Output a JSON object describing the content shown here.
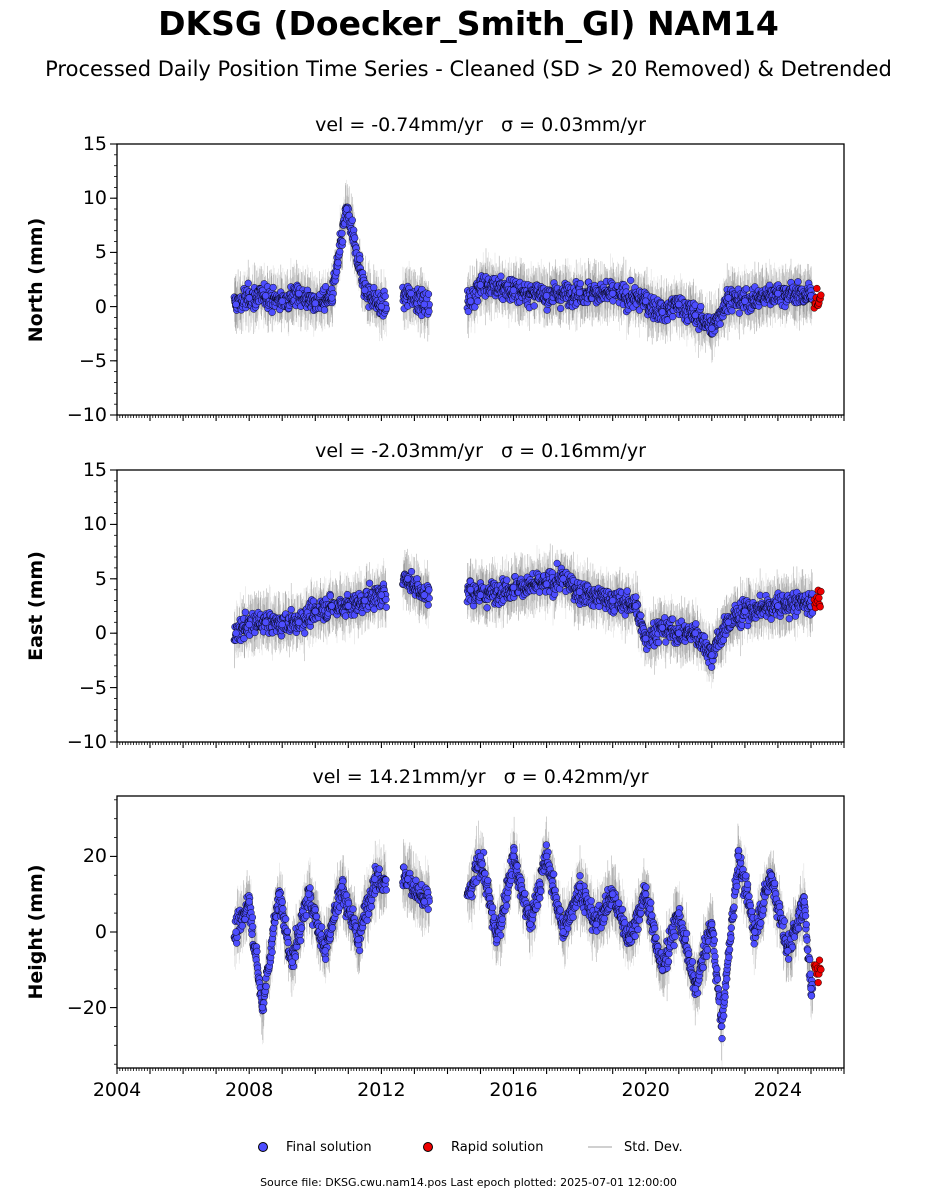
{
  "title": "DKSG (Doecker_Smith_Gl) NAM14",
  "subtitle": "Processed Daily Position Time Series - Cleaned (SD > 20 Removed) & Detrended",
  "footer": "Source file: DKSG.cwu.nam14.pos  Last epoch plotted: 2025-07-01 12:00:00",
  "legend": {
    "final": "Final solution",
    "rapid": "Rapid solution",
    "std": "Std. Dev."
  },
  "colors": {
    "final": "#4d4dff",
    "rapid": "#ee0000",
    "std": "#b0b0b0",
    "marker_edge": "#000000"
  },
  "chart_data": [
    {
      "type": "scatter",
      "title": "vel = -0.74mm/yr   σ = 0.03mm/yr",
      "ylabel": "North (mm)",
      "xlim": [
        2004.0,
        2026.0
      ],
      "ylim": [
        -10,
        15
      ],
      "yticks": [
        -10,
        -5,
        0,
        5,
        10,
        15
      ],
      "ytick_labels": [
        "−10",
        "−5",
        "0",
        "5",
        "10",
        "15"
      ],
      "data_spans": [
        [
          2007.55,
          2012.15
        ],
        [
          2012.65,
          2013.45
        ],
        [
          2014.6,
          2025.05
        ]
      ],
      "rapid_x": [
        2025.1,
        2025.3
      ],
      "series": [
        {
          "name": "Final solution",
          "x": [
            2007.6,
            2008.0,
            2008.5,
            2009.0,
            2009.5,
            2010.0,
            2010.5,
            2010.95,
            2011.5,
            2012.0,
            2012.9,
            2013.3,
            2014.7,
            2015.0,
            2016.0,
            2017.0,
            2018.0,
            2019.0,
            2020.0,
            2020.5,
            2021.0,
            2021.5,
            2022.0,
            2022.5,
            2023.0,
            2024.0,
            2025.0
          ],
          "y": [
            0.2,
            0.8,
            1.0,
            0.5,
            1.2,
            0.3,
            0.8,
            9.0,
            1.5,
            0.0,
            1.2,
            0.2,
            0.5,
            2.0,
            1.5,
            1.0,
            1.3,
            1.2,
            0.5,
            -0.5,
            0.2,
            -0.8,
            -2.0,
            0.8,
            0.5,
            1.2,
            1.0
          ]
        },
        {
          "name": "Rapid solution",
          "x": [
            2025.2
          ],
          "y": [
            0.7
          ]
        }
      ]
    },
    {
      "type": "scatter",
      "title": "vel = -2.03mm/yr   σ = 0.16mm/yr",
      "ylabel": "East (mm)",
      "xlim": [
        2004.0,
        2026.0
      ],
      "ylim": [
        -10,
        15
      ],
      "yticks": [
        -10,
        -5,
        0,
        5,
        10,
        15
      ],
      "ytick_labels": [
        "−10",
        "−5",
        "0",
        "5",
        "10",
        "15"
      ],
      "data_spans": [
        [
          2007.55,
          2012.15
        ],
        [
          2012.65,
          2013.45
        ],
        [
          2014.6,
          2025.05
        ]
      ],
      "rapid_x": [
        2025.1,
        2025.3
      ],
      "series": [
        {
          "name": "Final solution",
          "x": [
            2007.6,
            2008.0,
            2008.5,
            2009.0,
            2009.5,
            2010.0,
            2010.5,
            2011.0,
            2011.5,
            2012.0,
            2012.8,
            2013.3,
            2014.7,
            2015.0,
            2016.0,
            2017.0,
            2017.5,
            2018.0,
            2019.0,
            2019.7,
            2020.0,
            2020.5,
            2021.0,
            2021.5,
            2022.0,
            2022.5,
            2023.0,
            2024.0,
            2025.0
          ],
          "y": [
            0.0,
            0.8,
            1.0,
            0.8,
            1.0,
            2.0,
            2.5,
            2.5,
            3.0,
            3.5,
            5.0,
            3.5,
            4.0,
            3.5,
            4.2,
            4.5,
            5.0,
            3.8,
            3.0,
            2.5,
            -0.5,
            0.5,
            0.0,
            0.0,
            -2.0,
            1.0,
            2.0,
            2.5,
            3.0
          ]
        },
        {
          "name": "Rapid solution",
          "x": [
            2025.2
          ],
          "y": [
            3.0
          ]
        }
      ]
    },
    {
      "type": "scatter",
      "title": "vel = 14.21mm/yr   σ = 0.42mm/yr",
      "ylabel": "Height (mm)",
      "xlim": [
        2004.0,
        2026.0
      ],
      "ylim": [
        -36,
        36
      ],
      "yticks": [
        -20,
        0,
        20
      ],
      "ytick_labels": [
        "−20",
        "0",
        "20"
      ],
      "xticks": [
        2004,
        2008,
        2012,
        2016,
        2020,
        2024
      ],
      "xtick_labels": [
        "2004",
        "2008",
        "2012",
        "2016",
        "2020",
        "2024"
      ],
      "data_spans": [
        [
          2007.55,
          2012.15
        ],
        [
          2012.65,
          2013.45
        ],
        [
          2014.6,
          2025.05
        ]
      ],
      "rapid_x": [
        2025.1,
        2025.3
      ],
      "series": [
        {
          "name": "Final solution",
          "x": [
            2007.6,
            2008.0,
            2008.4,
            2008.9,
            2009.3,
            2009.8,
            2010.3,
            2010.8,
            2011.3,
            2011.8,
            2012.8,
            2013.3,
            2014.7,
            2015.0,
            2015.5,
            2016.0,
            2016.5,
            2017.0,
            2017.5,
            2018.0,
            2018.5,
            2019.0,
            2019.5,
            2020.0,
            2020.5,
            2021.0,
            2021.5,
            2022.0,
            2022.3,
            2022.8,
            2023.3,
            2023.8,
            2024.3,
            2024.8,
            2025.0
          ],
          "y": [
            0,
            8,
            -20,
            10,
            -8,
            10,
            -5,
            12,
            -2,
            14,
            14,
            8,
            10,
            20,
            -2,
            20,
            2,
            20,
            0,
            12,
            2,
            10,
            -2,
            10,
            -10,
            5,
            -15,
            2,
            -25,
            20,
            0,
            15,
            -5,
            8,
            -15
          ]
        },
        {
          "name": "Rapid solution",
          "x": [
            2025.2
          ],
          "y": [
            -10
          ]
        }
      ]
    }
  ]
}
